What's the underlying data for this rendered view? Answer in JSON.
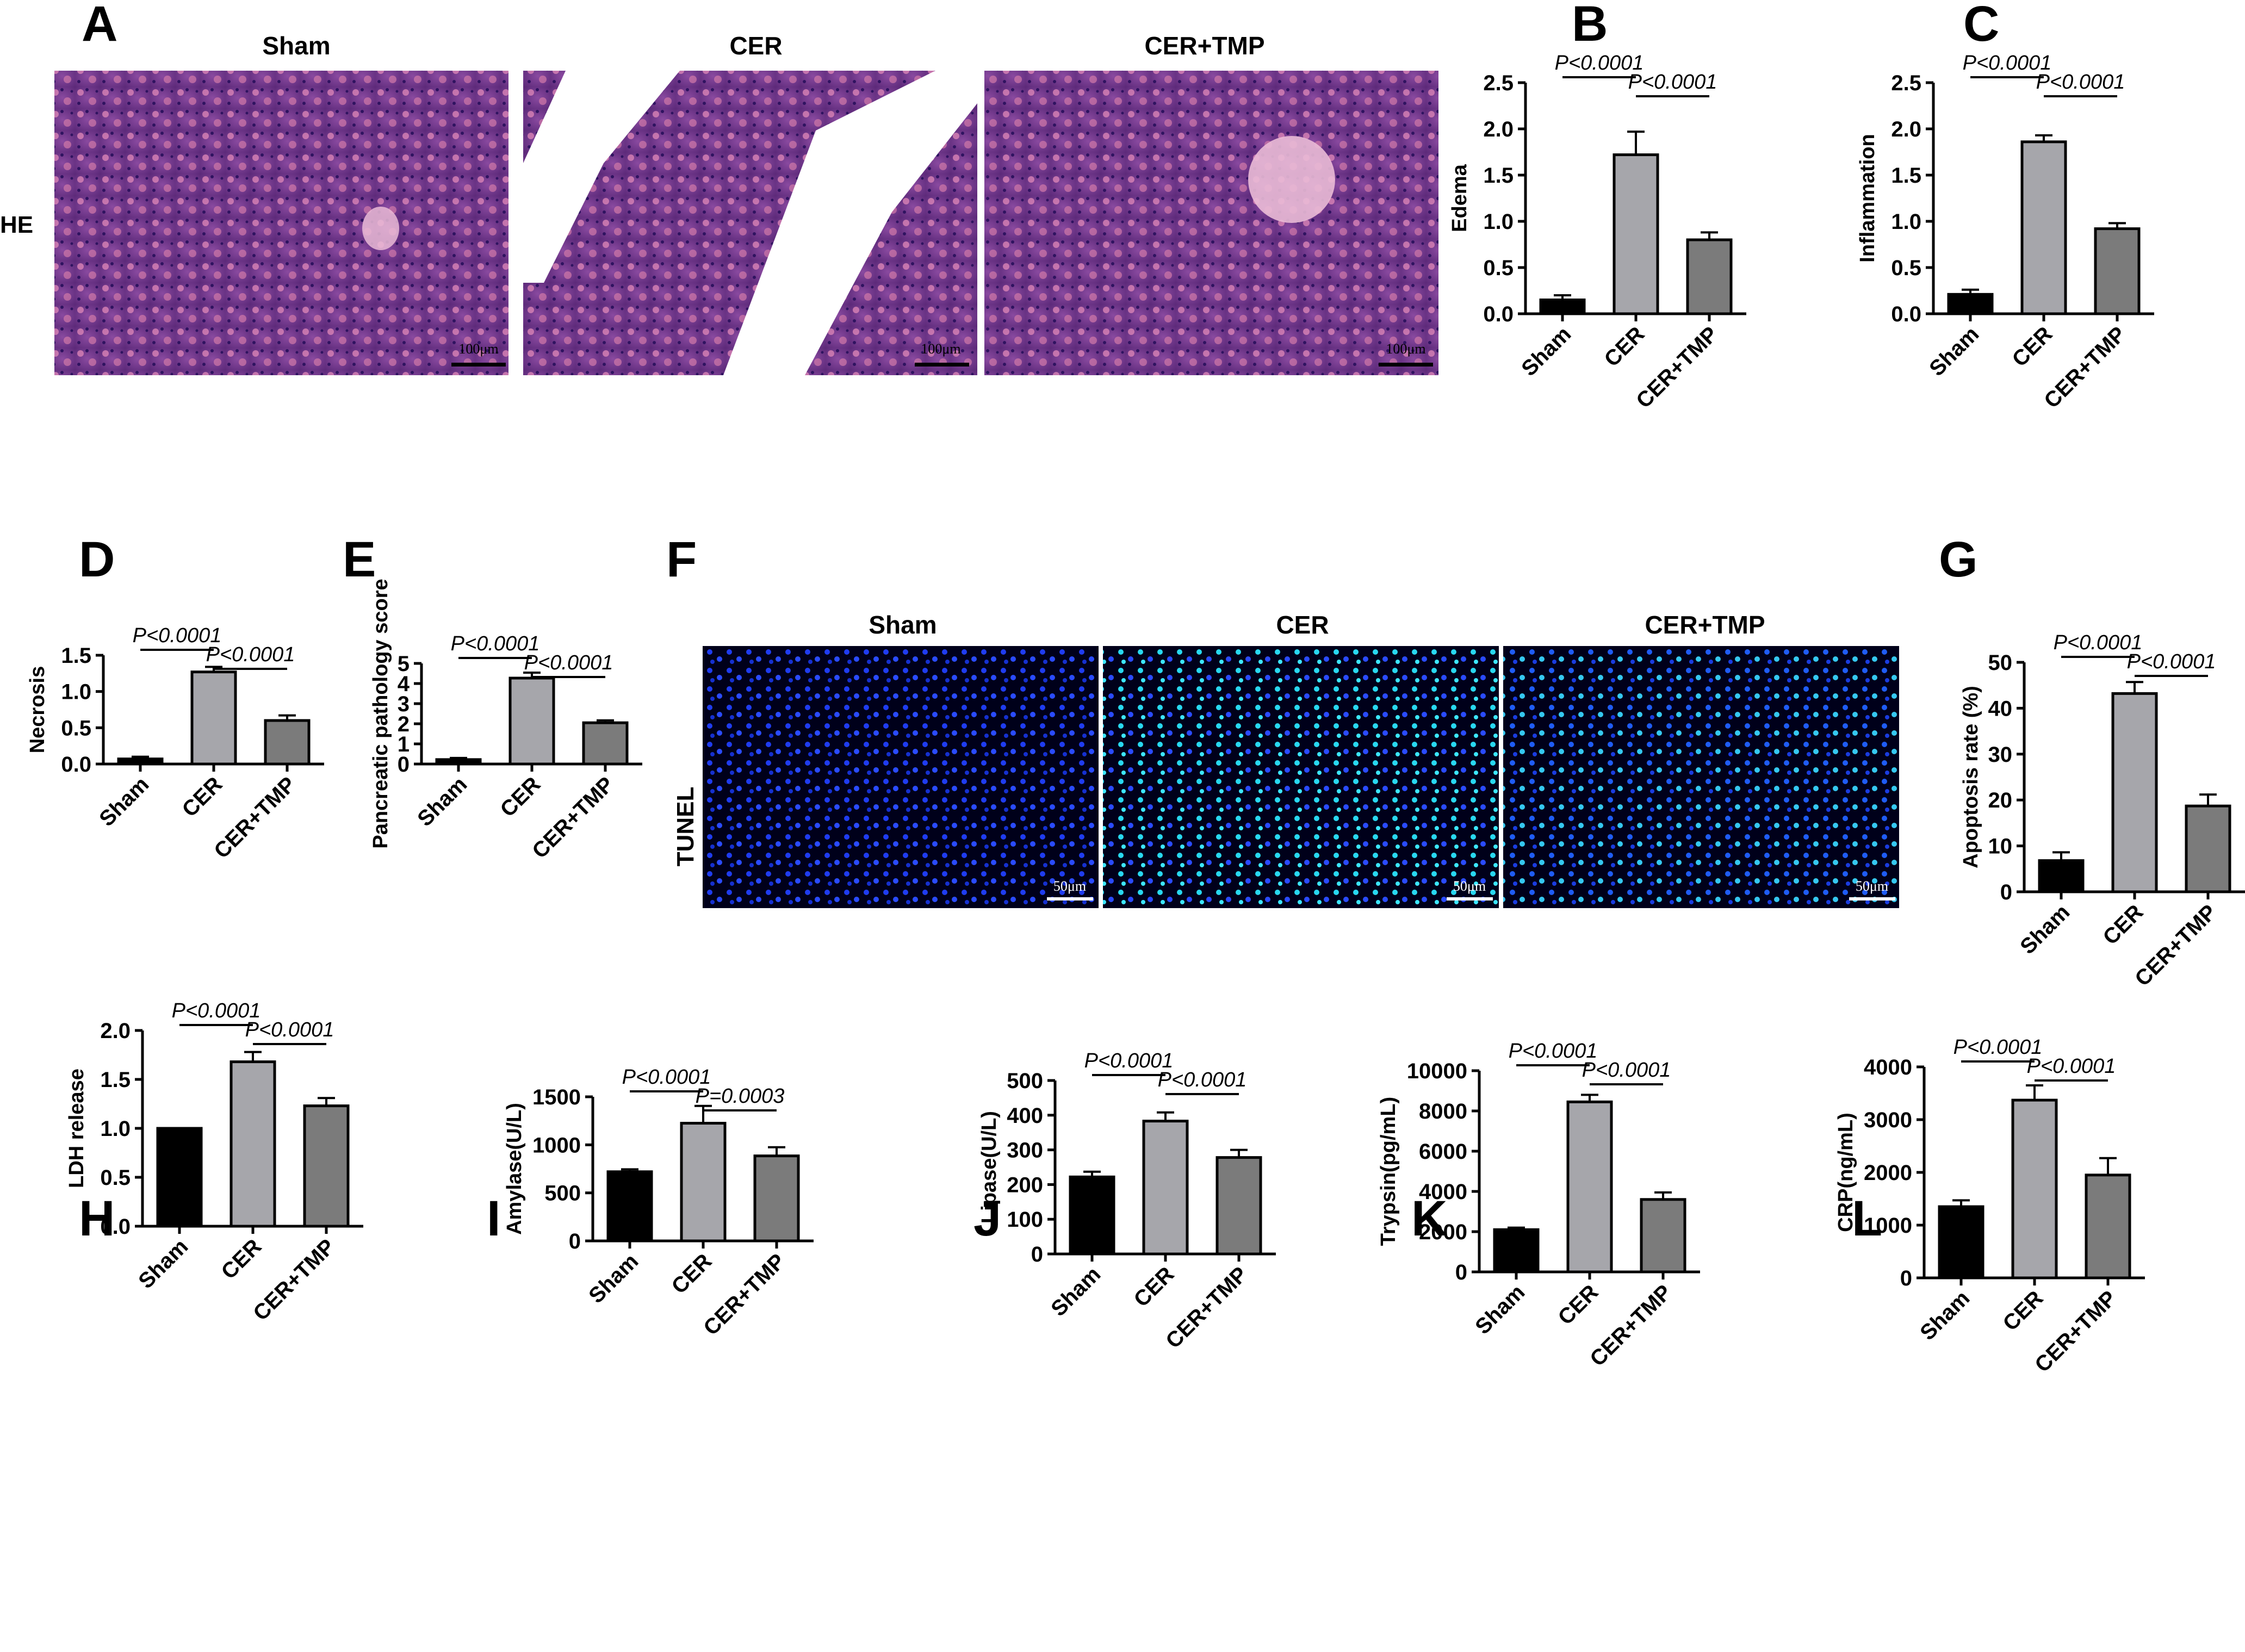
{
  "figure": {
    "panel_a": {
      "letter": "A",
      "row_label": "HE",
      "images": [
        {
          "title": "Sham",
          "scale_label": "100μm",
          "stain": "he"
        },
        {
          "title": "CER",
          "scale_label": "100μm",
          "stain": "he"
        },
        {
          "title": "CER+TMP",
          "scale_label": "100μm",
          "stain": "he"
        }
      ]
    },
    "panel_f": {
      "letter": "F",
      "row_label": "TUNEL",
      "images": [
        {
          "title": "Sham",
          "scale_label": "50μm",
          "stain": "tunel"
        },
        {
          "title": "CER",
          "scale_label": "50μm",
          "stain": "tunel"
        },
        {
          "title": "CER+TMP",
          "scale_label": "50μm",
          "stain": "tunel"
        }
      ]
    },
    "colors": {
      "sham": "#000000",
      "cer": "#a6a6ab",
      "cer_tmp": "#7b7b7b",
      "he_bg": "#7d3f92",
      "tunel_bg": "#000010"
    }
  },
  "chart_data": [
    {
      "panel": "B",
      "type": "bar",
      "categories": [
        "Sham",
        "CER",
        "CER+TMP"
      ],
      "values": [
        0.15,
        1.72,
        0.8
      ],
      "errors": [
        0.05,
        0.25,
        0.08
      ],
      "ylabel": "Edema",
      "ylim": [
        0,
        2.5
      ],
      "yticks": [
        "0.0",
        "0.5",
        "1.0",
        "1.5",
        "2.0",
        "2.5"
      ],
      "comparisons": [
        {
          "from": 0,
          "to": 1,
          "label": "P<0.0001"
        },
        {
          "from": 1,
          "to": 2,
          "label": "P<0.0001"
        }
      ]
    },
    {
      "panel": "C",
      "type": "bar",
      "categories": [
        "Sham",
        "CER",
        "CER+TMP"
      ],
      "values": [
        0.21,
        1.86,
        0.92
      ],
      "errors": [
        0.05,
        0.07,
        0.06
      ],
      "ylabel": "Inflammation",
      "ylim": [
        0,
        2.5
      ],
      "yticks": [
        "0.0",
        "0.5",
        "1.0",
        "1.5",
        "2.0",
        "2.5"
      ],
      "comparisons": [
        {
          "from": 0,
          "to": 1,
          "label": "P<0.0001"
        },
        {
          "from": 1,
          "to": 2,
          "label": "P<0.0001"
        }
      ]
    },
    {
      "panel": "D",
      "type": "bar",
      "categories": [
        "Sham",
        "CER",
        "CER+TMP"
      ],
      "values": [
        0.07,
        1.27,
        0.6
      ],
      "errors": [
        0.03,
        0.07,
        0.07
      ],
      "ylabel": "Necrosis",
      "ylim": [
        0,
        1.5
      ],
      "yticks": [
        "0.0",
        "0.5",
        "1.0",
        "1.5"
      ],
      "comparisons": [
        {
          "from": 0,
          "to": 1,
          "label": "P<0.0001"
        },
        {
          "from": 1,
          "to": 2,
          "label": "P<0.0001"
        }
      ]
    },
    {
      "panel": "E",
      "type": "bar",
      "categories": [
        "Sham",
        "CER",
        "CER+TMP"
      ],
      "values": [
        0.22,
        4.27,
        2.05
      ],
      "errors": [
        0.08,
        0.27,
        0.12
      ],
      "ylabel": "Pancreatic pathology score",
      "ylim": [
        0,
        5
      ],
      "yticks": [
        "0",
        "1",
        "2",
        "3",
        "4",
        "5"
      ],
      "comparisons": [
        {
          "from": 0,
          "to": 1,
          "label": "P<0.0001"
        },
        {
          "from": 1,
          "to": 2,
          "label": "P<0.0001"
        }
      ]
    },
    {
      "panel": "G",
      "type": "bar",
      "categories": [
        "Sham",
        "CER",
        "CER+TMP"
      ],
      "values": [
        6.8,
        43.2,
        18.7
      ],
      "errors": [
        1.8,
        2.5,
        2.5
      ],
      "ylabel": "Apoptosis rate (%)",
      "ylim": [
        0,
        50
      ],
      "yticks": [
        "0",
        "10",
        "20",
        "30",
        "40",
        "50"
      ],
      "comparisons": [
        {
          "from": 0,
          "to": 1,
          "label": "P<0.0001"
        },
        {
          "from": 1,
          "to": 2,
          "label": "P<0.0001"
        }
      ]
    },
    {
      "panel": "H",
      "type": "bar",
      "categories": [
        "Sham",
        "CER",
        "CER+TMP"
      ],
      "values": [
        1.0,
        1.68,
        1.23
      ],
      "errors": [
        0.0,
        0.1,
        0.08
      ],
      "ylabel": "LDH release",
      "ylim": [
        0,
        2.0
      ],
      "yticks": [
        "0.0",
        "0.5",
        "1.0",
        "1.5",
        "2.0"
      ],
      "comparisons": [
        {
          "from": 0,
          "to": 1,
          "label": "P<0.0001"
        },
        {
          "from": 1,
          "to": 2,
          "label": "P<0.0001"
        }
      ]
    },
    {
      "panel": "I",
      "type": "bar",
      "categories": [
        "Sham",
        "CER",
        "CER+TMP"
      ],
      "values": [
        720,
        1225,
        885
      ],
      "errors": [
        25,
        180,
        90
      ],
      "ylabel": "Amylase(U/L)",
      "ylim": [
        0,
        1500
      ],
      "yticks": [
        "0",
        "500",
        "1000",
        "1500"
      ],
      "comparisons": [
        {
          "from": 0,
          "to": 1,
          "label": "P<0.0001"
        },
        {
          "from": 1,
          "to": 2,
          "label": "P=0.0003"
        }
      ]
    },
    {
      "panel": "J",
      "type": "bar",
      "categories": [
        "Sham",
        "CER",
        "CER+TMP"
      ],
      "values": [
        222,
        383,
        278
      ],
      "errors": [
        15,
        25,
        22
      ],
      "ylabel": "Lipase(U/L)",
      "ylim": [
        0,
        500
      ],
      "yticks": [
        "0",
        "100",
        "200",
        "300",
        "400",
        "500"
      ],
      "comparisons": [
        {
          "from": 0,
          "to": 1,
          "label": "P<0.0001"
        },
        {
          "from": 1,
          "to": 2,
          "label": "P<0.0001"
        }
      ]
    },
    {
      "panel": "K",
      "type": "bar",
      "categories": [
        "Sham",
        "CER",
        "CER+TMP"
      ],
      "values": [
        2100,
        8450,
        3600
      ],
      "errors": [
        100,
        350,
        350
      ],
      "ylabel": "Trypsin(pg/mL)",
      "ylim": [
        0,
        10000
      ],
      "yticks": [
        "0",
        "2000",
        "4000",
        "6000",
        "8000",
        "10000"
      ],
      "comparisons": [
        {
          "from": 0,
          "to": 1,
          "label": "P<0.0001"
        },
        {
          "from": 1,
          "to": 2,
          "label": "P<0.0001"
        }
      ]
    },
    {
      "panel": "L",
      "type": "bar",
      "categories": [
        "Sham",
        "CER",
        "CER+TMP"
      ],
      "values": [
        1350,
        3370,
        1950
      ],
      "errors": [
        120,
        280,
        320
      ],
      "ylabel": "CRP(ng/mL)",
      "ylim": [
        0,
        4000
      ],
      "yticks": [
        "0",
        "1000",
        "2000",
        "3000",
        "4000"
      ],
      "comparisons": [
        {
          "from": 0,
          "to": 1,
          "label": "P<0.0001"
        },
        {
          "from": 1,
          "to": 2,
          "label": "P<0.0001"
        }
      ]
    }
  ]
}
